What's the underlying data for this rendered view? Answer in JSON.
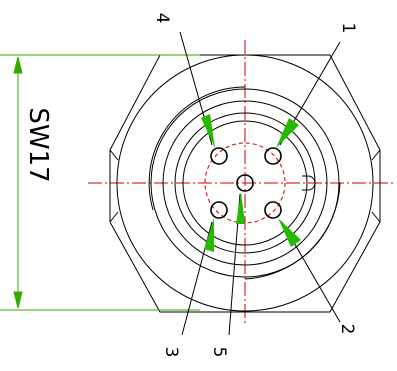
{
  "drawing": {
    "dimension_label": "SW17",
    "pin_labels": {
      "pin1": "1",
      "pin2": "2",
      "pin3": "3",
      "pin4": "4",
      "pin5": "5"
    },
    "colors": {
      "outline": "#000000",
      "centerline": "#cc0000",
      "dimension": "#33aa00",
      "leader_arrow": "#22bb00"
    }
  }
}
